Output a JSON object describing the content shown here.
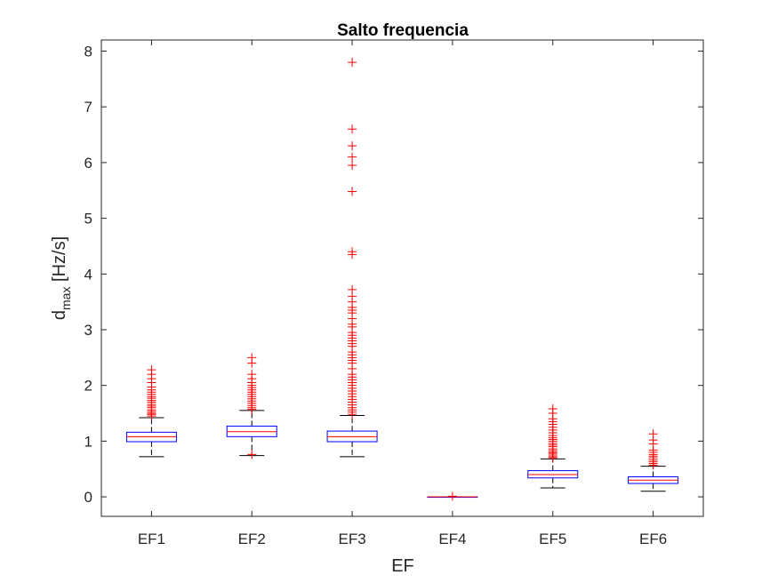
{
  "chart_data": {
    "type": "boxplot",
    "title": "Salto frequencia",
    "xlabel": "EF",
    "ylabel": {
      "main": "d",
      "sub": "max",
      "unit": " [Hz/s]"
    },
    "categories": [
      "EF1",
      "EF2",
      "EF3",
      "EF4",
      "EF5",
      "EF6"
    ],
    "ylim": [
      -0.35,
      8.2
    ],
    "yticks": [
      0,
      1,
      2,
      3,
      4,
      5,
      6,
      7,
      8
    ],
    "ytick_labels": [
      "0",
      "1",
      "2",
      "3",
      "4",
      "5",
      "6",
      "7",
      "8"
    ],
    "grid": false,
    "colors": {
      "box": "#0000ff",
      "median": "#ff0000",
      "whisker": "#000000",
      "outlier": "#ff0000",
      "axis": "#262626"
    },
    "boxes": [
      {
        "name": "EF1",
        "whisker_low": 0.72,
        "q1": 0.99,
        "median": 1.08,
        "q3": 1.16,
        "whisker_high": 1.42,
        "outliers": [
          1.45,
          1.48,
          1.5,
          1.53,
          1.56,
          1.6,
          1.63,
          1.66,
          1.7,
          1.73,
          1.77,
          1.8,
          1.84,
          1.88,
          1.92,
          1.97,
          2.05,
          2.12,
          2.2,
          2.28
        ]
      },
      {
        "name": "EF2",
        "whisker_low": 0.74,
        "q1": 1.08,
        "median": 1.17,
        "q3": 1.27,
        "whisker_high": 1.55,
        "outliers": [
          0.76,
          1.57,
          1.6,
          1.64,
          1.68,
          1.72,
          1.76,
          1.8,
          1.84,
          1.88,
          1.92,
          1.96,
          2.0,
          2.05,
          2.12,
          2.2,
          2.4,
          2.5
        ]
      },
      {
        "name": "EF3",
        "whisker_low": 0.72,
        "q1": 0.99,
        "median": 1.08,
        "q3": 1.18,
        "whisker_high": 1.46,
        "outliers": [
          1.48,
          1.52,
          1.56,
          1.6,
          1.65,
          1.7,
          1.75,
          1.8,
          1.85,
          1.9,
          1.95,
          2.0,
          2.05,
          2.1,
          2.15,
          2.2,
          2.3,
          2.4,
          2.45,
          2.5,
          2.55,
          2.6,
          2.7,
          2.75,
          2.8,
          2.85,
          2.9,
          2.95,
          3.05,
          3.1,
          3.2,
          3.3,
          3.35,
          3.4,
          3.5,
          3.6,
          3.72,
          4.35,
          4.4,
          5.48,
          5.95,
          6.1,
          6.3,
          6.6,
          7.8
        ]
      },
      {
        "name": "EF4",
        "whisker_low": 0.0,
        "q1": 0.0,
        "median": 0.0,
        "q3": 0.0,
        "whisker_high": 0.0,
        "outliers": [
          0.01
        ]
      },
      {
        "name": "EF5",
        "whisker_low": 0.16,
        "q1": 0.34,
        "median": 0.4,
        "q3": 0.47,
        "whisker_high": 0.68,
        "outliers": [
          0.7,
          0.72,
          0.75,
          0.78,
          0.8,
          0.83,
          0.86,
          0.9,
          0.93,
          0.96,
          1.0,
          1.03,
          1.06,
          1.1,
          1.15,
          1.2,
          1.25,
          1.3,
          1.35,
          1.4,
          1.5,
          1.58
        ]
      },
      {
        "name": "EF6",
        "whisker_low": 0.1,
        "q1": 0.24,
        "median": 0.3,
        "q3": 0.36,
        "whisker_high": 0.55,
        "outliers": [
          0.57,
          0.6,
          0.63,
          0.66,
          0.7,
          0.73,
          0.76,
          0.8,
          0.84,
          0.95,
          1.02,
          1.13
        ]
      }
    ]
  }
}
